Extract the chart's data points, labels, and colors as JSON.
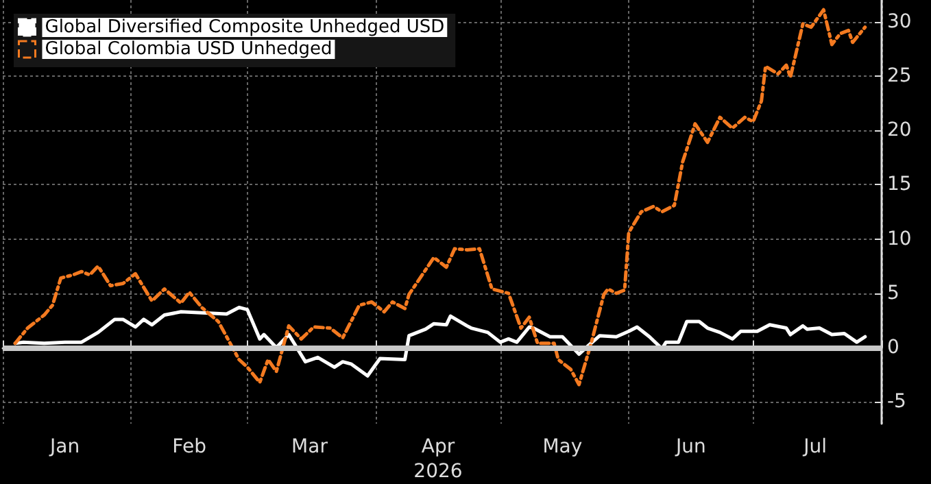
{
  "chart_data": {
    "type": "line",
    "legend": "top left",
    "grid": true,
    "xlim": [
      "2026-01-01",
      "2026-08-01"
    ],
    "xticks": [
      {
        "value": "2026-01-01",
        "label": null
      },
      {
        "value": "2026-01-16",
        "label": "Jan"
      },
      {
        "value": "2026-02-01",
        "label": null
      },
      {
        "value": "2026-02-15",
        "label": "Feb"
      },
      {
        "value": "2026-03-01",
        "label": null
      },
      {
        "value": "2026-03-16",
        "label": "Mar"
      },
      {
        "value": "2026-04-01",
        "label": null
      },
      {
        "value": "2026-04-16",
        "label": "Apr\n2026"
      },
      {
        "value": "2026-05-01",
        "label": null
      },
      {
        "value": "2026-05-16",
        "label": "May"
      },
      {
        "value": "2026-06-01",
        "label": null
      },
      {
        "value": "2026-06-16",
        "label": "Jun"
      },
      {
        "value": "2026-07-01",
        "label": null
      },
      {
        "value": "2026-07-16",
        "label": "Jul"
      },
      {
        "value": "2026-08-01",
        "label": null
      }
    ],
    "ylim": [
      -7,
      32
    ],
    "yticks": [
      -5,
      0,
      5,
      10,
      15,
      20,
      25,
      30
    ],
    "ref_lines": [
      {
        "axis": "y",
        "value": 0,
        "color": "#c8c8c8"
      }
    ],
    "series": [
      {
        "name": "Global Diversified Composite Unhedged USD",
        "color": "#ffffff",
        "line_style": "solid",
        "x": [
          "2026-01-04",
          "2026-01-06",
          "2026-01-11",
          "2026-01-16",
          "2026-01-20",
          "2026-01-24",
          "2026-01-28",
          "2026-01-30",
          "2026-02-02",
          "2026-02-04",
          "2026-02-06",
          "2026-02-09",
          "2026-02-13",
          "2026-02-18",
          "2026-02-24",
          "2026-02-27",
          "2026-03-01",
          "2026-03-04",
          "2026-03-05",
          "2026-03-08",
          "2026-03-11",
          "2026-03-15",
          "2026-03-18",
          "2026-03-22",
          "2026-03-24",
          "2026-03-26",
          "2026-03-30",
          "2026-04-02",
          "2026-04-08",
          "2026-04-09",
          "2026-04-13",
          "2026-04-15",
          "2026-04-18",
          "2026-04-19",
          "2026-04-23",
          "2026-04-24",
          "2026-04-28",
          "2026-05-01",
          "2026-05-03",
          "2026-05-05",
          "2026-05-08",
          "2026-05-09",
          "2026-05-13",
          "2026-05-16",
          "2026-05-20",
          "2026-05-22",
          "2026-05-25",
          "2026-05-29",
          "2026-06-01",
          "2026-06-03",
          "2026-06-06",
          "2026-06-09",
          "2026-06-10",
          "2026-06-13",
          "2026-06-15",
          "2026-06-18",
          "2026-06-20",
          "2026-06-23",
          "2026-06-26",
          "2026-06-28",
          "2026-07-02",
          "2026-07-05",
          "2026-07-09",
          "2026-07-10",
          "2026-07-13",
          "2026-07-14",
          "2026-07-17",
          "2026-07-20",
          "2026-07-23",
          "2026-07-26",
          "2026-07-28"
        ],
        "values": [
          0.4,
          0.5,
          0.4,
          0.5,
          0.5,
          1.4,
          2.6,
          2.6,
          1.9,
          2.6,
          2.1,
          3.0,
          3.3,
          3.2,
          3.1,
          3.7,
          3.5,
          0.8,
          1.2,
          0,
          1.2,
          -1.3,
          -0.9,
          -1.8,
          -1.3,
          -1.5,
          -2.6,
          -1.0,
          -1.1,
          1.1,
          1.7,
          2.2,
          2.1,
          2.9,
          2.0,
          1.8,
          1.4,
          0.5,
          0.8,
          0.5,
          1.9,
          1.8,
          1.0,
          1.0,
          -0.6,
          0.1,
          1.1,
          1.0,
          1.5,
          1.9,
          1.0,
          -0.1,
          0.5,
          0.5,
          2.4,
          2.4,
          1.8,
          1.4,
          0.8,
          1.5,
          1.5,
          2.1,
          1.8,
          1.2,
          2.0,
          1.7,
          1.8,
          1.2,
          1.3,
          0.5,
          1.0
        ]
      },
      {
        "name": "Global Colombia USD Unhedged",
        "color": "#f47a20",
        "line_style": "dashed",
        "x": [
          "2026-01-04",
          "2026-01-07",
          "2026-01-11",
          "2026-01-13",
          "2026-01-15",
          "2026-01-18",
          "2026-01-20",
          "2026-01-22",
          "2026-01-24",
          "2026-01-27",
          "2026-01-30",
          "2026-02-02",
          "2026-02-06",
          "2026-02-09",
          "2026-02-13",
          "2026-02-15",
          "2026-02-18",
          "2026-02-22",
          "2026-02-24",
          "2026-02-27",
          "2026-03-01",
          "2026-03-04",
          "2026-03-06",
          "2026-03-08",
          "2026-03-11",
          "2026-03-14",
          "2026-03-17",
          "2026-03-21",
          "2026-03-24",
          "2026-03-28",
          "2026-03-31",
          "2026-04-03",
          "2026-04-05",
          "2026-04-08",
          "2026-04-09",
          "2026-04-15",
          "2026-04-18",
          "2026-04-20",
          "2026-04-23",
          "2026-04-26",
          "2026-04-29",
          "2026-05-03",
          "2026-05-06",
          "2026-05-08",
          "2026-05-10",
          "2026-05-14",
          "2026-05-15",
          "2026-05-18",
          "2026-05-20",
          "2026-05-23",
          "2026-05-26",
          "2026-05-27",
          "2026-05-29",
          "2026-05-31",
          "2026-06-01",
          "2026-06-04",
          "2026-06-07",
          "2026-06-09",
          "2026-06-12",
          "2026-06-14",
          "2026-06-17",
          "2026-06-20",
          "2026-06-23",
          "2026-06-26",
          "2026-06-29",
          "2026-07-01",
          "2026-07-03",
          "2026-07-04",
          "2026-07-07",
          "2026-07-09",
          "2026-07-10",
          "2026-07-13",
          "2026-07-15",
          "2026-07-18",
          "2026-07-20",
          "2026-07-22",
          "2026-07-24",
          "2026-07-25",
          "2026-07-28"
        ],
        "values": [
          0.4,
          1.8,
          3.0,
          3.9,
          6.4,
          6.7,
          7.0,
          6.7,
          7.5,
          5.7,
          5.9,
          6.8,
          4.3,
          5.4,
          4.1,
          5.1,
          3.7,
          2.4,
          1.0,
          -1.1,
          -1.8,
          -3.2,
          -1.1,
          -2.2,
          2.0,
          0.8,
          1.9,
          1.8,
          0.9,
          3.9,
          4.2,
          3.3,
          4.2,
          3.6,
          4.9,
          8.3,
          7.4,
          9.1,
          9.0,
          9.1,
          5.4,
          5.0,
          1.8,
          2.8,
          0.4,
          0.4,
          -1.1,
          -2.0,
          -3.4,
          0.5,
          4.9,
          5.4,
          5.0,
          5.3,
          10.6,
          12.5,
          13.0,
          12.5,
          13.1,
          17.1,
          20.6,
          18.9,
          21.2,
          20.2,
          21.2,
          20.8,
          22.7,
          25.9,
          25.2,
          26.0,
          24.9,
          29.8,
          29.5,
          31.1,
          27.9,
          28.9,
          29.2,
          28.1,
          29.5
        ]
      }
    ]
  }
}
